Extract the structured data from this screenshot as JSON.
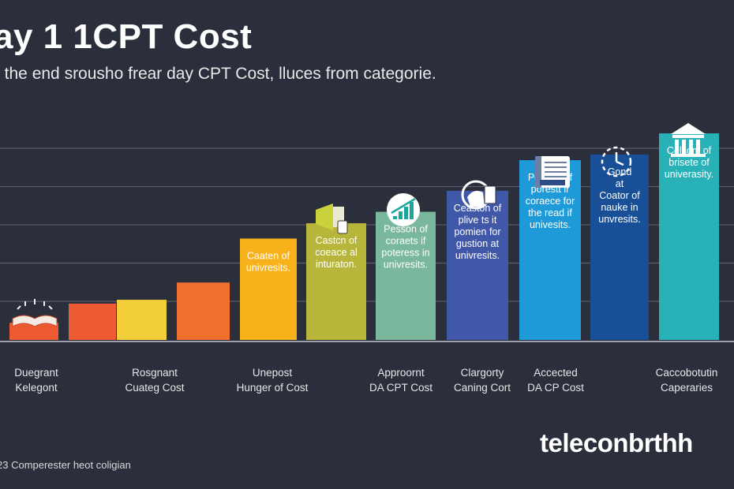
{
  "title": "ay 1 1CPT Cost",
  "subtitle": "f the end srousho frear day CPT Cost, lluces from categorie.",
  "chart_data": {
    "type": "bar",
    "ylim": [
      0,
      6
    ],
    "grid": true,
    "values": [
      0.45,
      0.95,
      1.05,
      1.5,
      2.65,
      3.05,
      3.35,
      3.9,
      4.7,
      4.85,
      5.4
    ],
    "colors": [
      "#ee5a32",
      "#ee5a32",
      "#f3cf3b",
      "#f0702e",
      "#f7b21b",
      "#b7b53a",
      "#7ab89d",
      "#4157a8",
      "#1e9ad8",
      "#184f96",
      "#28b2b8"
    ],
    "bar_texts": [
      [],
      [],
      [],
      [],
      [
        "Caaten of",
        "univresits."
      ],
      [
        "Castcn of",
        "coeace al",
        "inturaton."
      ],
      [
        "Pesson of",
        "coraets if",
        "poteress in",
        "univresits."
      ],
      [
        "Ceaston of",
        "plive ts it",
        "pomien for",
        "gustion at",
        "univresits."
      ],
      [
        "Pesean of",
        "porestt ir",
        "coraece for",
        "the read if",
        "univesits."
      ],
      [
        "Gond",
        "at",
        "Coator of",
        "nauke in",
        "unvresits."
      ],
      [
        "Celsom of",
        "brisete of",
        "univerasity."
      ]
    ],
    "category_labels": [
      [
        "Duegrant",
        "Kelegont"
      ],
      [
        "Rosgnant",
        "Cuateg Cost"
      ],
      [
        "Unepost",
        "Hunger of Cost"
      ],
      [
        "Approornt",
        "DA CPT Cost"
      ],
      [
        "Clargorty",
        "Caning Cort"
      ],
      [
        "Accected",
        "DA CP Cost"
      ],
      [
        "Caccobotutin",
        "Caperaries"
      ]
    ]
  },
  "icons": [
    "book-icon",
    "megaphone-icon",
    "growth-chart-icon",
    "head-gear-icon",
    "document-icon",
    "clock-icon",
    "university-icon"
  ],
  "footer": "23 Comperester heot coligian",
  "brand": "teleconbrthh"
}
